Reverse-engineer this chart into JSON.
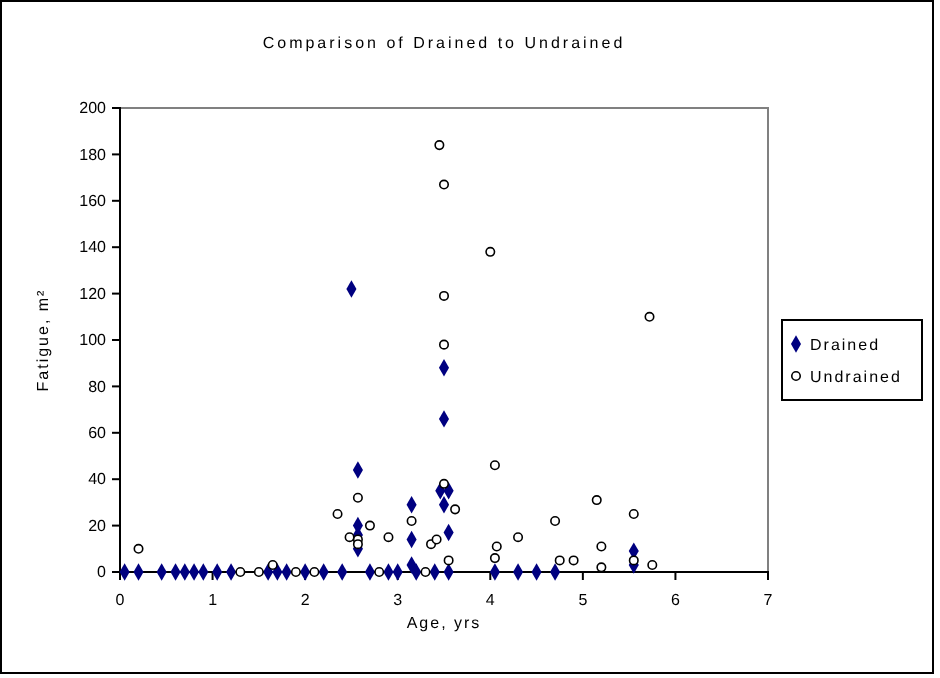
{
  "chart_data": {
    "type": "scatter",
    "title": "Comparison of Drained to Undrained",
    "xlabel": "Age, yrs",
    "ylabel": "Fatigue, m²",
    "xlim": [
      0,
      7
    ],
    "xticks": [
      0,
      1,
      2,
      3,
      4,
      5,
      6,
      7
    ],
    "ylim": [
      0,
      200
    ],
    "yticks": [
      0,
      20,
      40,
      60,
      80,
      100,
      120,
      140,
      160,
      180,
      200
    ],
    "legend": "right",
    "grid": false,
    "series": [
      {
        "name": "Drained",
        "color": "#000080",
        "marker": "diamond",
        "x": [
          2.5,
          2.57,
          2.57,
          2.57,
          2.57,
          3.15,
          3.15,
          3.15,
          3.5,
          3.5,
          3.46,
          3.55,
          3.5,
          3.55,
          5.55,
          5.55,
          0.05,
          0.2,
          0.45,
          0.6,
          0.7,
          0.8,
          0.9,
          1.05,
          1.2,
          1.6,
          1.7,
          1.8,
          2.0,
          2.2,
          2.4,
          2.7,
          2.9,
          3.0,
          3.2,
          3.4,
          3.55,
          4.05,
          4.3,
          4.5,
          4.7
        ],
        "values": [
          122,
          44,
          20,
          16,
          10,
          29,
          14,
          3,
          88,
          66,
          35,
          35,
          29,
          17,
          9,
          3,
          0,
          0,
          0,
          0,
          0,
          0,
          0,
          0,
          0,
          0,
          0,
          0,
          0,
          0,
          0,
          0,
          0,
          0,
          0,
          0,
          0,
          0,
          0,
          0,
          0
        ]
      },
      {
        "name": "Undrained",
        "color": "#000000",
        "marker": "circle",
        "x": [
          0.2,
          2.35,
          2.48,
          2.57,
          2.57,
          2.57,
          2.7,
          2.9,
          3.15,
          3.36,
          3.42,
          3.45,
          3.5,
          3.5,
          3.5,
          3.5,
          3.55,
          3.62,
          4.0,
          4.05,
          4.07,
          4.05,
          4.3,
          4.7,
          4.75,
          4.9,
          5.15,
          5.2,
          5.2,
          5.55,
          5.55,
          5.72,
          5.75,
          1.3,
          1.5,
          1.65,
          1.9,
          2.1,
          2.8,
          3.3
        ],
        "values": [
          10,
          25,
          15,
          32,
          14,
          12,
          20,
          15,
          22,
          12,
          14,
          184,
          167,
          119,
          98,
          38,
          5,
          27,
          138,
          46,
          11,
          6,
          15,
          22,
          5,
          5,
          31,
          11,
          2,
          25,
          5,
          110,
          3,
          0,
          0,
          3,
          0,
          0,
          0,
          0
        ]
      }
    ]
  }
}
